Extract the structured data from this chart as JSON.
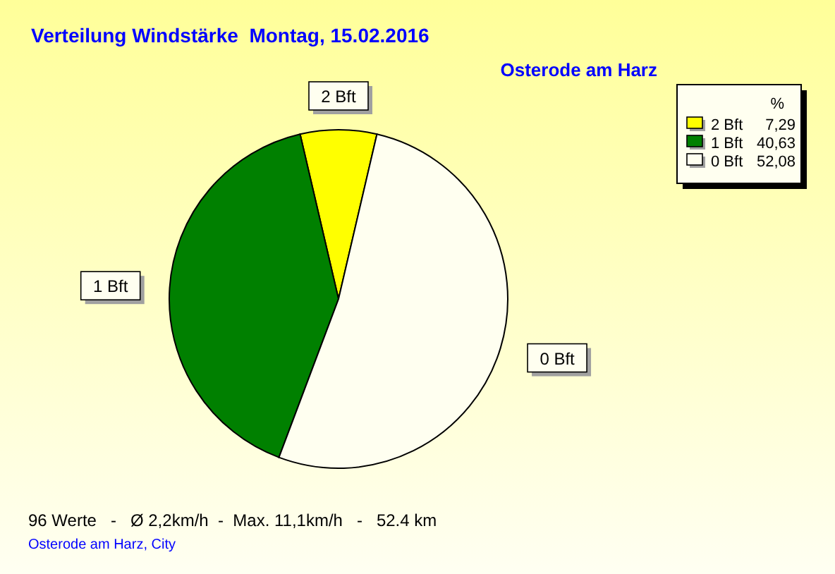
{
  "chart_data": {
    "type": "pie",
    "title": "Verteilung Windstärke  Montag, 15.02.2016",
    "subtitle": "Osterode am Harz",
    "categories": [
      "2 Bft",
      "1 Bft",
      "0 Bft"
    ],
    "values": [
      7.29,
      40.63,
      52.08
    ],
    "value_labels": [
      "7,29",
      "40,63",
      "52,08"
    ],
    "colors": [
      "#ffff00",
      "#008000",
      "#fffff0"
    ],
    "legend": "top right",
    "legend_title": "%",
    "annotations": [
      "96 Werte   -   Ø 2,2km/h  -  Max. 11,1km/h   -   52.4 km",
      "Osterode am Harz, City"
    ]
  }
}
